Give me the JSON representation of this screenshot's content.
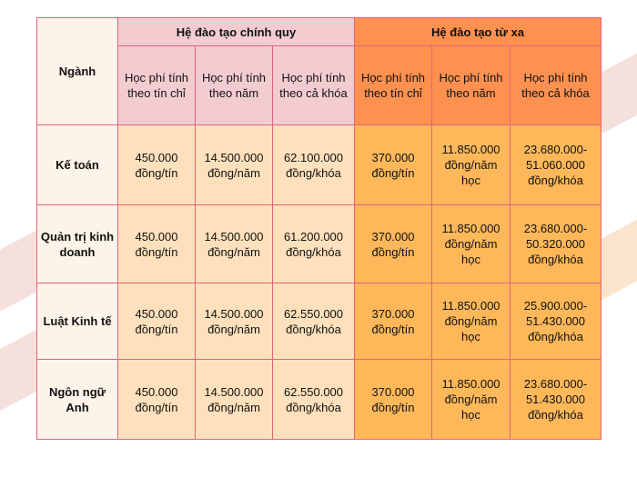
{
  "table": {
    "major_header": "Ngành",
    "groups": [
      {
        "label": "Hệ đào tạo chính quy"
      },
      {
        "label": "Hệ đào tạo từ xa"
      }
    ],
    "subheaders": {
      "regular": [
        "Học phí tính theo tín chỉ",
        "Học phí tính theo năm",
        "Học phí tính theo cả khóa"
      ],
      "distance": [
        "Học phí tính theo tín chỉ",
        "Học phí tính theo năm",
        "Học phí tính theo cả khóa"
      ]
    },
    "rows": [
      {
        "major": "Kế toán",
        "regular": [
          "450.000 đồng/tín",
          "14.500.000 đồng/năm",
          "62.100.000 đồng/khóa"
        ],
        "distance": [
          "370.000 đồng/tín",
          "11.850.000 đồng/năm học",
          "23.680.000-51.060.000 đồng/khóa"
        ]
      },
      {
        "major": "Quản trị kinh doanh",
        "regular": [
          "450.000 đồng/tín",
          "14.500.000 đồng/năm",
          "61.200.000 đồng/khóa"
        ],
        "distance": [
          "370.000 đồng/tín",
          "11.850.000 đồng/năm học",
          "23.680.000-50.320.000 đồng/khóa"
        ]
      },
      {
        "major": "Luật Kinh tế",
        "regular": [
          "450.000 đồng/tín",
          "14.500.000 đồng/năm",
          "62.550.000 đồng/khóa"
        ],
        "distance": [
          "370.000 đồng/tín",
          "11.850.000 đồng/năm học",
          "25.900.000-51.430.000 đồng/khóa"
        ]
      },
      {
        "major": "Ngôn ngữ Anh",
        "regular": [
          "450.000 đồng/tín",
          "14.500.000 đồng/năm",
          "62.550.000 đồng/khóa"
        ],
        "distance": [
          "370.000 đồng/tín",
          "11.850.000 đồng/năm học",
          "23.680.000-51.430.000 đồng/khóa"
        ]
      }
    ]
  },
  "colors": {
    "border": "#e4647b",
    "header_regular": "#f2ccd0",
    "header_distance": "#fe9150",
    "cell_regular": "#fee1bc",
    "cell_distance": "#feb85a",
    "major_column": "#fef3e8"
  }
}
